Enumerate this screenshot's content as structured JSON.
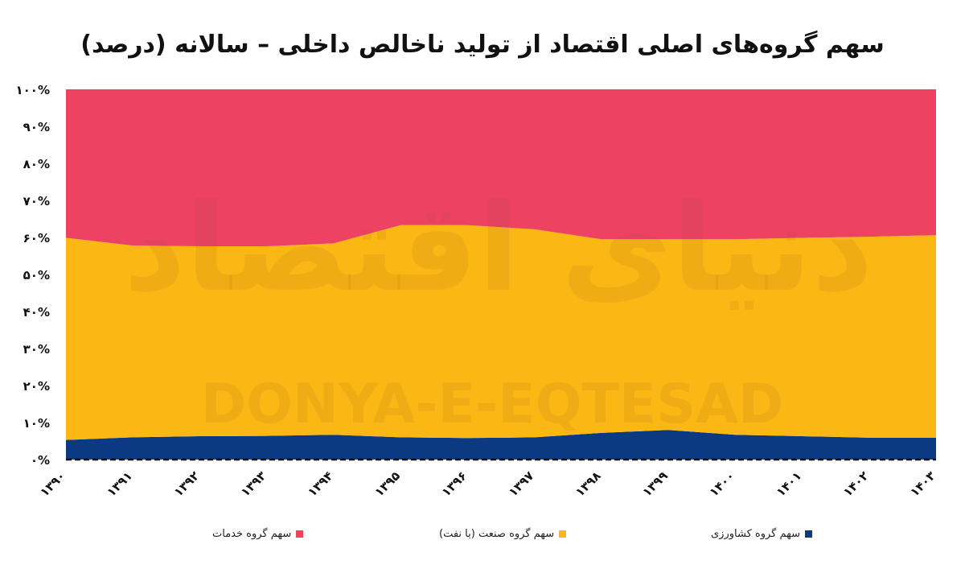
{
  "chart_data": {
    "type": "area",
    "stacked": true,
    "percent": true,
    "title": "سهم گروه‌های اصلی اقتصاد از تولید ناخالص داخلی – سالانه (درصد)",
    "categories": [
      "۱۳۹۰",
      "۱۳۹۱",
      "۱۳۹۲",
      "۱۳۹۳",
      "۱۳۹۴",
      "۱۳۹۵",
      "۱۳۹۶",
      "۱۳۹۷",
      "۱۳۹۸",
      "۱۳۹۹",
      "۱۴۰۰",
      "۱۴۰۱",
      "۱۴۰۲",
      "۱۴۰۳"
    ],
    "ylim": [
      0,
      100
    ],
    "yticks": [
      0,
      10,
      20,
      30,
      40,
      50,
      60,
      70,
      80,
      90,
      100
    ],
    "ytick_labels": [
      "۰%",
      "۱۰%",
      "۲۰%",
      "۳۰%",
      "۴۰%",
      "۵۰%",
      "۶۰%",
      "۷۰%",
      "۸۰%",
      "۹۰%",
      "۱۰۰%"
    ],
    "legend_position": "bottom",
    "series": [
      {
        "name": "سهم گروه کشاورزی",
        "color": "#0b3a82",
        "values": [
          5.3,
          6.0,
          6.3,
          6.4,
          6.7,
          6.0,
          5.8,
          6.0,
          7.2,
          8.0,
          6.7,
          6.3,
          5.9,
          5.9
        ]
      },
      {
        "name": "سهم گروه صنعت (با نفت)",
        "color": "#fbb713",
        "values": [
          54.6,
          51.8,
          51.3,
          51.2,
          51.7,
          57.3,
          57.5,
          56.2,
          52.3,
          51.5,
          52.8,
          53.6,
          54.3,
          54.7
        ]
      },
      {
        "name": "سهم گروه خدمات",
        "color": "#ee4263",
        "values": [
          40.1,
          42.2,
          42.4,
          42.4,
          41.6,
          36.7,
          36.7,
          37.8,
          40.5,
          40.5,
          40.5,
          40.1,
          39.8,
          39.4
        ]
      }
    ],
    "watermark": {
      "logo": "دنیای اقتصاد",
      "text": "DONYA-E-EQTESAD"
    }
  }
}
